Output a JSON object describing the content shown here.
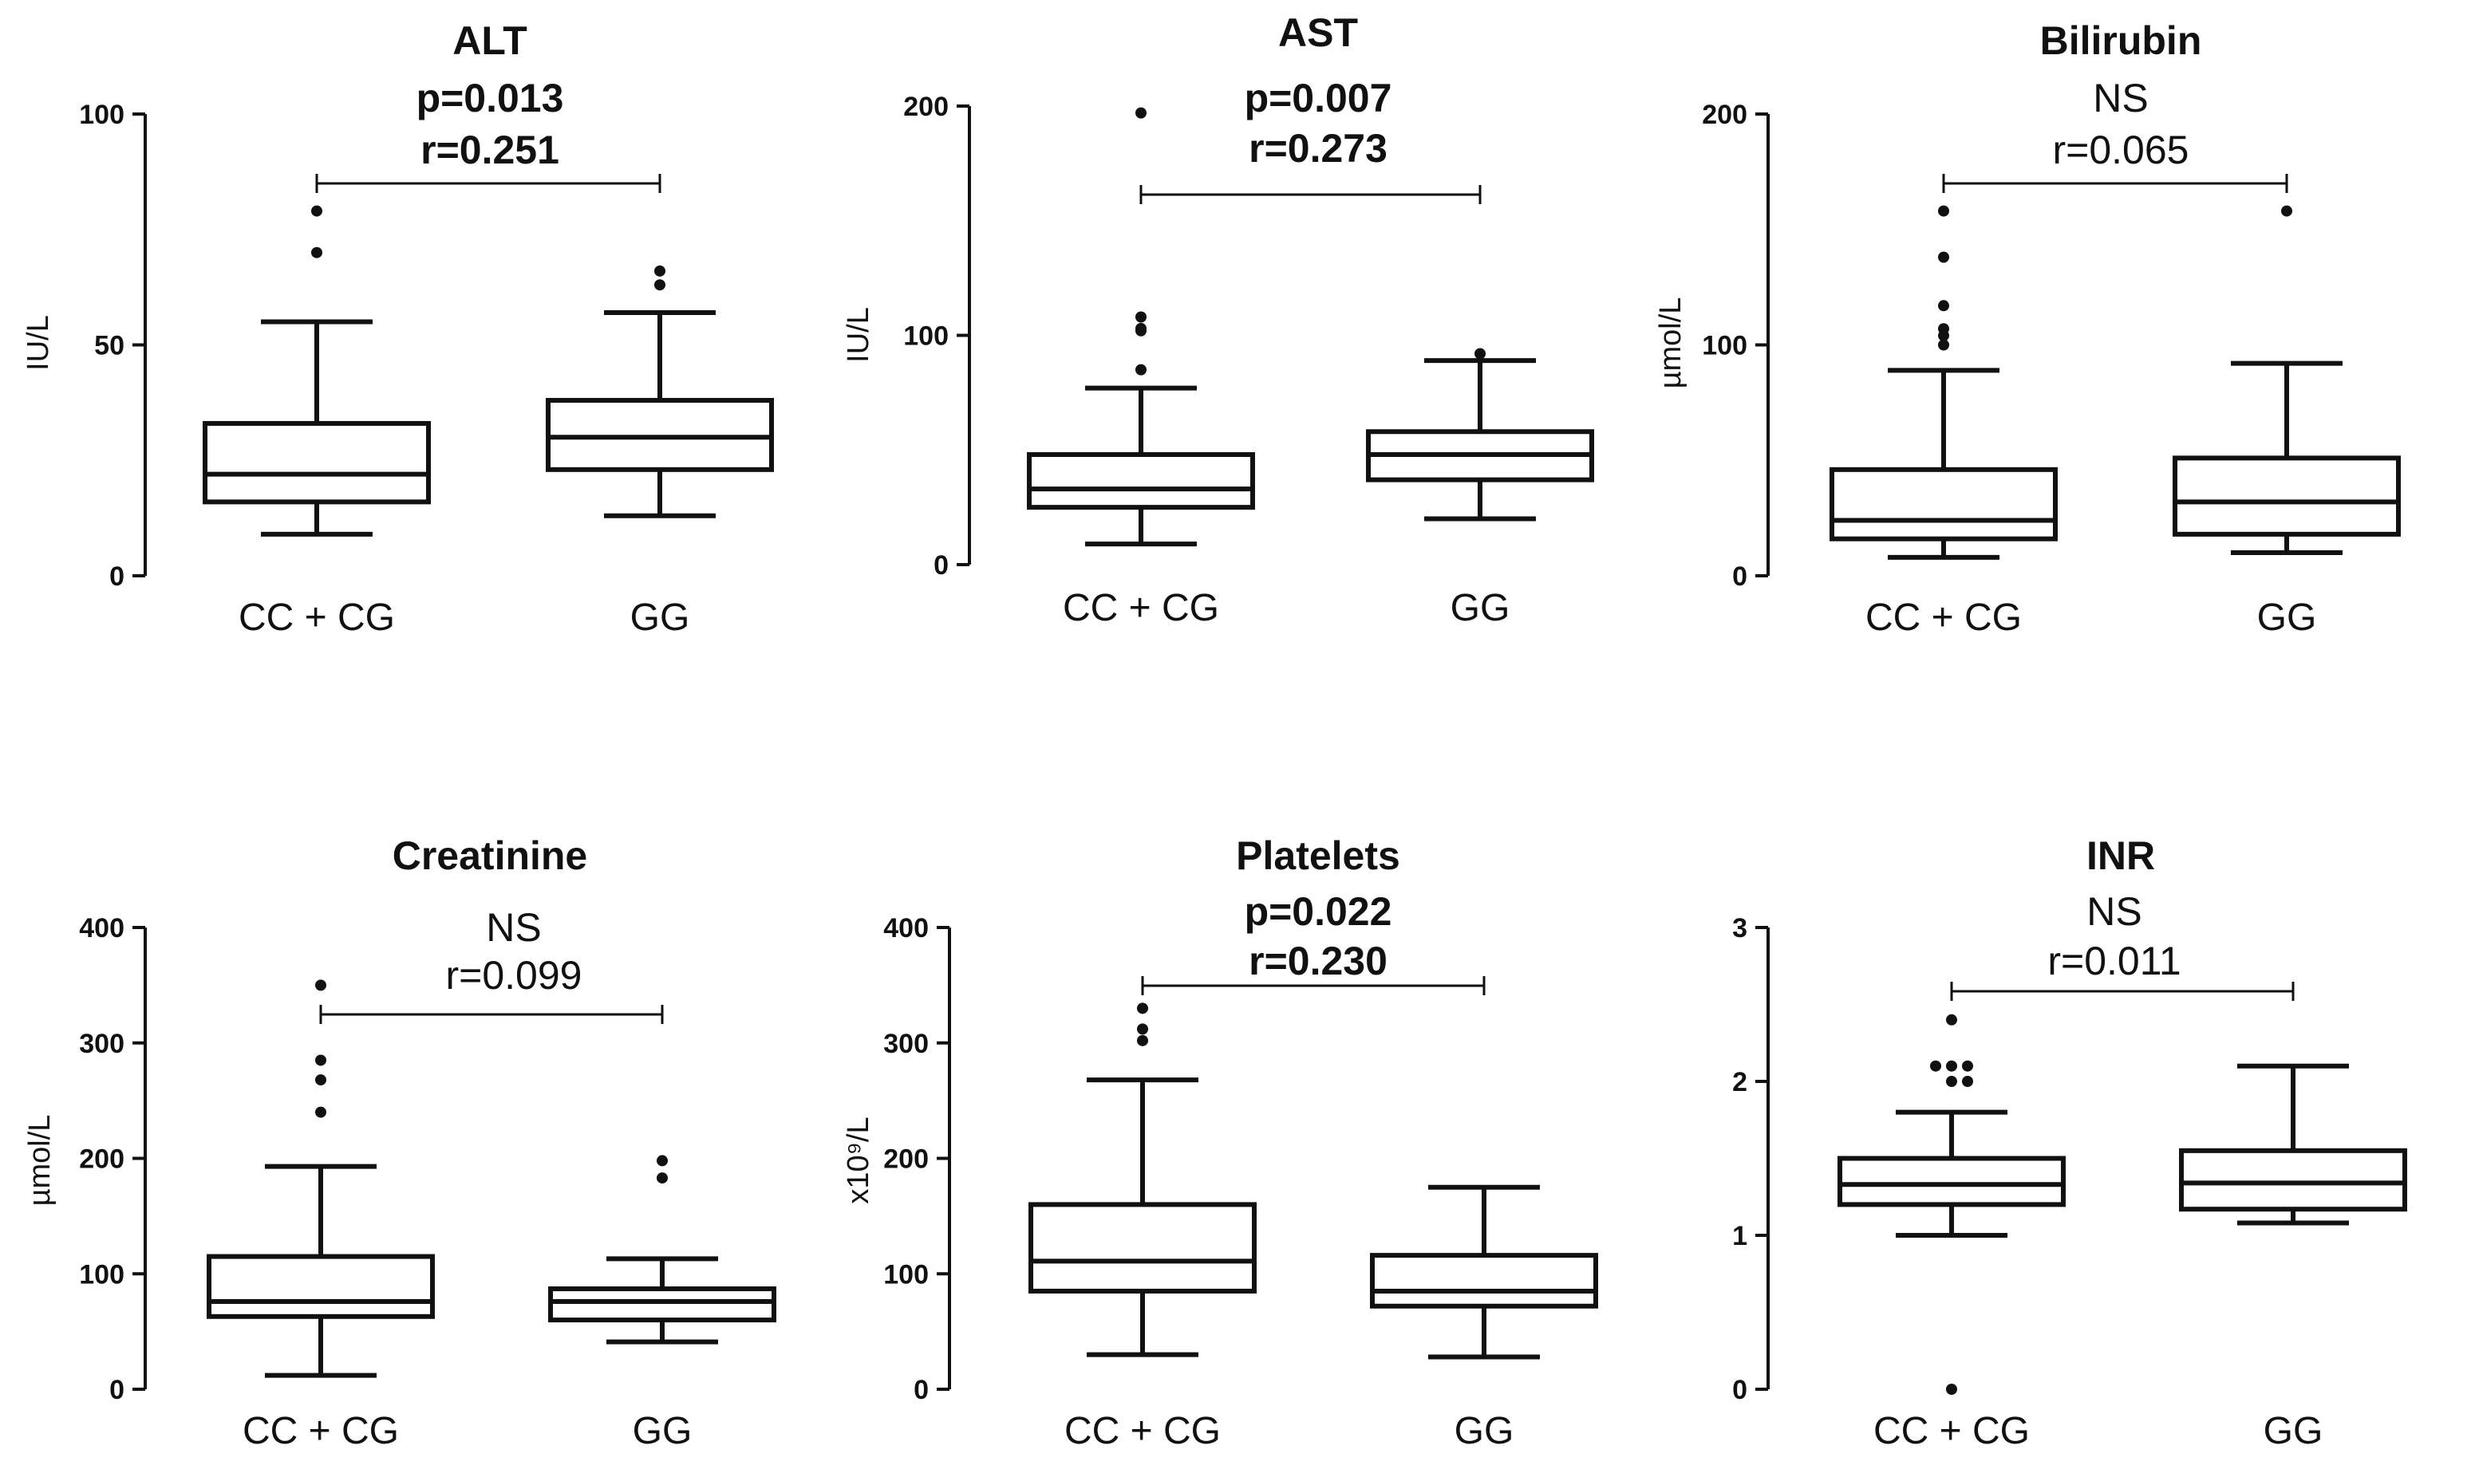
{
  "chart_data": [
    {
      "type": "box",
      "title": "ALT",
      "ylabel": "IU/L",
      "ylim": [
        0,
        100
      ],
      "yticks": [
        0,
        50,
        100
      ],
      "categories": [
        "CC + CG",
        "GG"
      ],
      "boxes": [
        {
          "whisker_low": 9,
          "q1": 16,
          "median": 22,
          "q3": 33,
          "whisker_high": 55,
          "outliers": [
            70,
            79
          ]
        },
        {
          "whisker_low": 13,
          "q1": 23,
          "median": 30,
          "q3": 38,
          "whisker_high": 57,
          "outliers": [
            63,
            66
          ]
        }
      ],
      "stats": {
        "line1": "p=0.013",
        "line2": "r=0.251",
        "significant": true
      }
    },
    {
      "type": "box",
      "title": "AST",
      "ylabel": "IU/L",
      "ylim": [
        0,
        200
      ],
      "yticks": [
        0,
        100,
        200
      ],
      "categories": [
        "CC + CG",
        "GG"
      ],
      "boxes": [
        {
          "whisker_low": 9,
          "q1": 25,
          "median": 33,
          "q3": 48,
          "whisker_high": 77,
          "outliers": [
            85,
            102,
            103,
            108,
            197
          ]
        },
        {
          "whisker_low": 20,
          "q1": 37,
          "median": 48,
          "q3": 58,
          "whisker_high": 89,
          "outliers": [
            92
          ]
        }
      ],
      "stats": {
        "line1": "p=0.007",
        "line2": "r=0.273",
        "significant": true
      }
    },
    {
      "type": "box",
      "title": "Bilirubin",
      "ylabel": "µmol/L",
      "ylim": [
        0,
        200
      ],
      "yticks": [
        0,
        100,
        200
      ],
      "categories": [
        "CC + CG",
        "GG"
      ],
      "boxes": [
        {
          "whisker_low": 8,
          "q1": 16,
          "median": 24,
          "q3": 46,
          "whisker_high": 89,
          "outliers": [
            100,
            104,
            107,
            117,
            138,
            158
          ]
        },
        {
          "whisker_low": 10,
          "q1": 18,
          "median": 32,
          "q3": 51,
          "whisker_high": 92,
          "outliers": [
            158
          ]
        }
      ],
      "stats": {
        "line1": "NS",
        "line2": "r=0.065",
        "significant": false
      }
    },
    {
      "type": "box",
      "title": "Creatinine",
      "ylabel": "µmol/L",
      "ylim": [
        0,
        400
      ],
      "yticks": [
        0,
        100,
        200,
        300,
        400
      ],
      "categories": [
        "CC + CG",
        "GG"
      ],
      "boxes": [
        {
          "whisker_low": 12,
          "q1": 63,
          "median": 76,
          "q3": 115,
          "whisker_high": 193,
          "outliers": [
            240,
            268,
            285,
            350
          ]
        },
        {
          "whisker_low": 41,
          "q1": 60,
          "median": 76,
          "q3": 87,
          "whisker_high": 113,
          "outliers": [
            183,
            198
          ]
        }
      ],
      "stats": {
        "line1": "NS",
        "line2": "r=0.099",
        "significant": false
      }
    },
    {
      "type": "box",
      "title": "Platelets",
      "ylabel": "x10⁹/L",
      "ylim": [
        0,
        400
      ],
      "yticks": [
        0,
        100,
        200,
        300,
        400
      ],
      "categories": [
        "CC + CG",
        "GG"
      ],
      "boxes": [
        {
          "whisker_low": 30,
          "q1": 85,
          "median": 111,
          "q3": 160,
          "whisker_high": 268,
          "outliers": [
            302,
            312,
            330
          ]
        },
        {
          "whisker_low": 28,
          "q1": 72,
          "median": 85,
          "q3": 116,
          "whisker_high": 175,
          "outliers": []
        }
      ],
      "stats": {
        "line1": "p=0.022",
        "line2": "r=0.230",
        "significant": true
      }
    },
    {
      "type": "box",
      "title": "INR",
      "ylabel": "",
      "ylim": [
        0,
        3
      ],
      "yticks": [
        0,
        1,
        2,
        3
      ],
      "categories": [
        "CC + CG",
        "GG"
      ],
      "boxes": [
        {
          "whisker_low": 1.0,
          "q1": 1.2,
          "median": 1.33,
          "q3": 1.5,
          "whisker_high": 1.8,
          "outliers": [
            0.0,
            2.0,
            2.0,
            2.1,
            2.1,
            2.1,
            2.4
          ]
        },
        {
          "whisker_low": 1.08,
          "q1": 1.17,
          "median": 1.34,
          "q3": 1.55,
          "whisker_high": 2.1,
          "outliers": []
        }
      ],
      "stats": {
        "line1": "NS",
        "line2": "r=0.011",
        "significant": false
      }
    }
  ]
}
